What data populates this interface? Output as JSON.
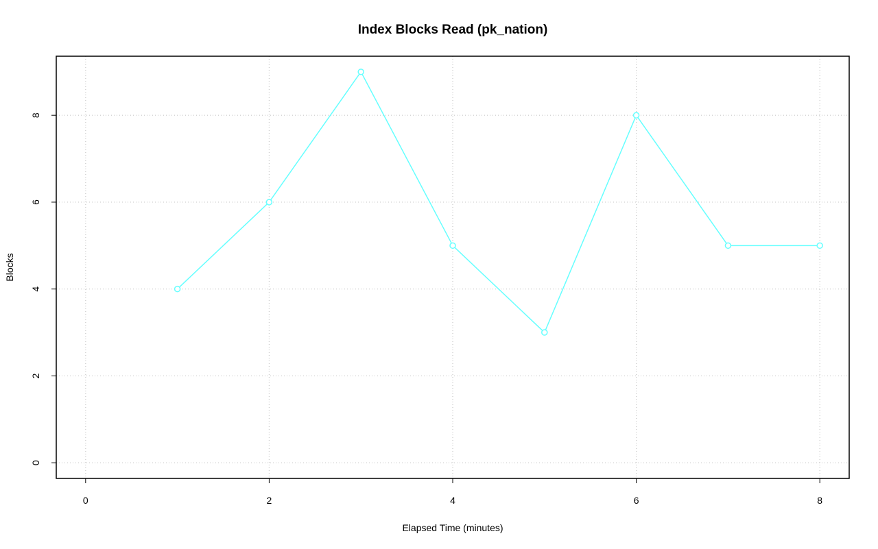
{
  "chart_data": {
    "type": "line",
    "title": "Index Blocks Read (pk_nation)",
    "xlabel": "Elapsed Time (minutes)",
    "ylabel": "Blocks",
    "x": [
      1,
      2,
      3,
      4,
      5,
      6,
      7,
      8
    ],
    "series": [
      {
        "name": "pk_nation",
        "color": "#66ffff",
        "values": [
          4,
          6,
          9,
          5,
          3,
          8,
          5,
          5
        ]
      }
    ],
    "xlim": [
      -0.32,
      8.32
    ],
    "ylim": [
      -0.36,
      9.36
    ],
    "xticks": [
      0,
      2,
      4,
      6,
      8
    ],
    "yticks": [
      0,
      2,
      4,
      6,
      8
    ],
    "grid": true
  }
}
